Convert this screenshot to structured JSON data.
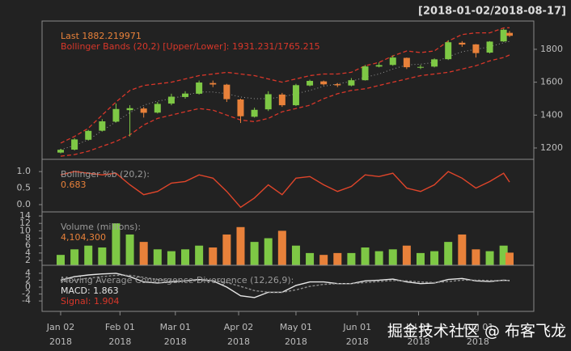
{
  "chart_data": [
    {
      "type": "candlestick",
      "title": "[2018-01-02/2018-08-17]",
      "annotations": [
        "Last 1882.219971",
        "Bollinger Bands (20,2) [Upper/Lower]: 1931.231/1765.215"
      ],
      "annotation_colors": [
        "#e8813a",
        "#d9372a"
      ],
      "x": [
        "2018-01-02",
        "2018-01-09",
        "2018-01-16",
        "2018-01-23",
        "2018-01-30",
        "2018-02-06",
        "2018-02-13",
        "2018-02-20",
        "2018-02-27",
        "2018-03-06",
        "2018-03-13",
        "2018-03-20",
        "2018-03-27",
        "2018-04-03",
        "2018-04-10",
        "2018-04-17",
        "2018-04-24",
        "2018-05-01",
        "2018-05-08",
        "2018-05-15",
        "2018-05-22",
        "2018-05-29",
        "2018-06-05",
        "2018-06-12",
        "2018-06-19",
        "2018-06-26",
        "2018-07-03",
        "2018-07-10",
        "2018-07-17",
        "2018-07-24",
        "2018-07-31",
        "2018-08-07",
        "2018-08-14",
        "2018-08-17"
      ],
      "open": [
        1172,
        1190,
        1250,
        1305,
        1360,
        1430,
        1440,
        1415,
        1470,
        1510,
        1530,
        1595,
        1585,
        1495,
        1390,
        1435,
        1525,
        1460,
        1580,
        1605,
        1588,
        1580,
        1612,
        1695,
        1705,
        1748,
        1690,
        1695,
        1740,
        1840,
        1830,
        1780,
        1848,
        1900
      ],
      "high": [
        1195,
        1260,
        1310,
        1375,
        1470,
        1460,
        1450,
        1480,
        1530,
        1545,
        1610,
        1610,
        1590,
        1500,
        1445,
        1545,
        1535,
        1590,
        1615,
        1610,
        1595,
        1625,
        1705,
        1720,
        1763,
        1750,
        1705,
        1745,
        1855,
        1850,
        1832,
        1850,
        1925,
        1912
      ],
      "low": [
        1167,
        1185,
        1245,
        1300,
        1355,
        1270,
        1385,
        1410,
        1460,
        1500,
        1525,
        1570,
        1480,
        1352,
        1385,
        1425,
        1450,
        1455,
        1575,
        1580,
        1570,
        1575,
        1610,
        1690,
        1700,
        1680,
        1680,
        1690,
        1735,
        1815,
        1750,
        1775,
        1845,
        1875
      ],
      "close": [
        1189,
        1252,
        1304,
        1362,
        1437,
        1442,
        1414,
        1468,
        1512,
        1531,
        1598,
        1586,
        1497,
        1393,
        1432,
        1527,
        1460,
        1582,
        1608,
        1587,
        1581,
        1612,
        1696,
        1704,
        1750,
        1691,
        1693,
        1739,
        1843,
        1829,
        1777,
        1847,
        1919,
        1882.22
      ],
      "up_color": "#7ec845",
      "down_color": "#e8813a",
      "bands": {
        "upper": [
          1230,
          1270,
          1320,
          1400,
          1480,
          1550,
          1580,
          1590,
          1600,
          1620,
          1640,
          1650,
          1660,
          1650,
          1640,
          1620,
          1600,
          1620,
          1640,
          1650,
          1650,
          1660,
          1700,
          1720,
          1760,
          1790,
          1780,
          1790,
          1850,
          1890,
          1900,
          1900,
          1930,
          1931.23
        ],
        "lower": [
          1150,
          1160,
          1180,
          1210,
          1240,
          1280,
          1340,
          1380,
          1400,
          1420,
          1440,
          1430,
          1400,
          1370,
          1360,
          1380,
          1420,
          1440,
          1460,
          1500,
          1530,
          1550,
          1560,
          1580,
          1600,
          1620,
          1640,
          1650,
          1660,
          1680,
          1700,
          1730,
          1750,
          1765.22
        ],
        "middle": [
          1190,
          1215,
          1250,
          1305,
          1360,
          1415,
          1460,
          1485,
          1500,
          1520,
          1540,
          1540,
          1530,
          1510,
          1500,
          1500,
          1510,
          1530,
          1550,
          1575,
          1590,
          1605,
          1630,
          1650,
          1680,
          1705,
          1710,
          1720,
          1755,
          1785,
          1800,
          1815,
          1840,
          1848
        ],
        "color": "#d9372a",
        "middle_color": "#9a9a9a"
      },
      "ylim": [
        1131,
        1972
      ],
      "yticks": [
        1200,
        1400,
        1600,
        1800
      ]
    },
    {
      "type": "line",
      "annotations": [
        "Bollinger %b (20,2):",
        "0.683"
      ],
      "annotation_colors": [
        "#9a9a9a",
        "#e8813a"
      ],
      "values": [
        0.9,
        1.0,
        0.95,
        0.9,
        0.95,
        0.6,
        0.3,
        0.4,
        0.65,
        0.7,
        0.9,
        0.8,
        0.4,
        -0.08,
        0.2,
        0.6,
        0.3,
        0.8,
        0.85,
        0.6,
        0.4,
        0.55,
        0.9,
        0.85,
        0.95,
        0.5,
        0.4,
        0.6,
        1.0,
        0.8,
        0.5,
        0.7,
        0.95,
        0.683
      ],
      "color": "#e0452a",
      "ylim": [
        -0.22,
        1.37
      ],
      "yticks": [
        {
          "value": 0,
          "label": "0.0"
        },
        {
          "value": 0.5,
          "label": "0.5"
        },
        {
          "value": 1,
          "label": "1.0"
        }
      ]
    },
    {
      "type": "bar",
      "annotations": [
        "Volume (millions):",
        "4,104,300"
      ],
      "annotation_colors": [
        "#9a9a9a",
        "#e8813a"
      ],
      "values": [
        3.5,
        5,
        6,
        5.5,
        12,
        9,
        7,
        5,
        4.5,
        5,
        6,
        5.5,
        9,
        11,
        7,
        8,
        10,
        6,
        4,
        3.5,
        4,
        4,
        5.5,
        4.5,
        5,
        6,
        4,
        4.5,
        7,
        9,
        5,
        4.5,
        6,
        4.1043
      ],
      "ylim": [
        0.7,
        15.1
      ],
      "yticks": [
        2,
        4,
        6,
        8,
        10,
        12,
        14
      ]
    },
    {
      "type": "line",
      "annotations": [
        "Moving Average Convergence Divergence (12,26,9):",
        "MACD: 1.863",
        "Signal: 1.904"
      ],
      "annotation_colors": [
        "#9a9a9a",
        "#e6e6e6",
        "#d9372a"
      ],
      "series": [
        {
          "color": "#e6e6e6",
          "values": [
            2,
            3,
            3.5,
            3.8,
            4,
            3,
            1.5,
            1.2,
            1.5,
            1.8,
            2.2,
            1.8,
            0,
            -2.5,
            -3,
            -1.5,
            -1.5,
            0.5,
            1.5,
            1.5,
            1,
            1,
            1.8,
            2,
            2.3,
            1.5,
            1,
            1.2,
            2.2,
            2.5,
            1.8,
            1.6,
            2,
            1.863
          ]
        },
        {
          "color": "#8c8c8c",
          "values": [
            1.5,
            2,
            2.6,
            3,
            3.4,
            3.4,
            2.8,
            2.2,
            1.8,
            1.7,
            1.9,
            1.9,
            1.3,
            0.2,
            -1,
            -1.5,
            -1.5,
            -0.8,
            0.2,
            0.8,
            1,
            1,
            1.3,
            1.6,
            1.9,
            1.8,
            1.5,
            1.3,
            1.6,
            2,
            2,
            1.9,
            1.9,
            1.904
          ]
        }
      ],
      "ylim": [
        -7,
        6.3
      ],
      "yticks": [
        -4,
        -2,
        0,
        2,
        4
      ],
      "xlim": [
        "2018-01-02",
        "2018-08-17"
      ],
      "xticks": [
        {
          "value": "2018-01-02",
          "label": "Jan 02\n2018"
        },
        {
          "value": "2018-02-01",
          "label": "Feb 01\n2018"
        },
        {
          "value": "2018-03-01",
          "label": "Mar 01\n2018"
        },
        {
          "value": "2018-04-02",
          "label": "Apr 02\n2018"
        },
        {
          "value": "2018-05-01",
          "label": "May 01\n2018"
        },
        {
          "value": "2018-06-01",
          "label": "Jun 01\n2018"
        },
        {
          "value": "2018-07-02",
          "label": "Jul 02\n2018"
        },
        {
          "value": "2018-08-01",
          "label": "Aug 01\n2018"
        }
      ]
    }
  ],
  "watermark": "掘金技术社区 @ 布客飞龙"
}
